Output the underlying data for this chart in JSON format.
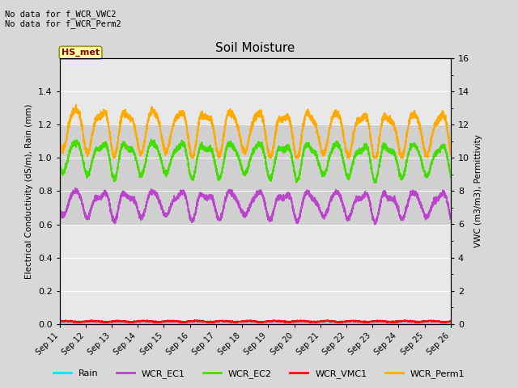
{
  "title": "Soil Moisture",
  "annotation_lines": [
    "No data for f_WCR_VWC2",
    "No data for f_WCR_Perm2"
  ],
  "site_label": "HS_met",
  "ylabel_left": "Electrical Conductivity (dS/m), Rain (mm)",
  "ylabel_right": "VWC (m3/m3), Permittivity",
  "ylim_left": [
    0,
    1.6
  ],
  "ylim_right": [
    0,
    16
  ],
  "yticks_left": [
    0.0,
    0.2,
    0.4,
    0.6,
    0.8,
    1.0,
    1.2,
    1.4
  ],
  "yticks_right": [
    0,
    2,
    4,
    6,
    8,
    10,
    12,
    14,
    16
  ],
  "background_color": "#d8d8d8",
  "plot_bg_color": "#e8e8e8",
  "gray_band": [
    0.6,
    1.2
  ],
  "colors": {
    "Rain": "#00e5ff",
    "WCR_EC1": "#bb44cc",
    "WCR_EC2": "#44dd00",
    "WCR_VMC1": "#ee1111",
    "WCR_Perm1": "#ffaa00"
  },
  "n_days": 15,
  "samples_per_day": 240
}
